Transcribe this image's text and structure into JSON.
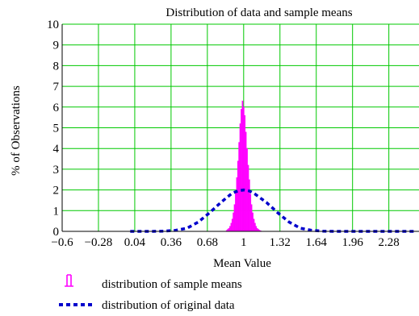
{
  "chart_data": {
    "type": "bar",
    "title": "Distribution of data and sample means",
    "xlabel": "Mean Value",
    "ylabel": "% of Observations",
    "xlim": [
      -0.6,
      2.56
    ],
    "ylim": [
      0,
      10
    ],
    "x_ticks": [
      -0.6,
      -0.28,
      0.04,
      0.36,
      0.68,
      1,
      1.32,
      1.64,
      1.96,
      2.28
    ],
    "x_tick_labels": [
      "−0.6",
      "−0.28",
      "0.04",
      "0.36",
      "0.68",
      "1",
      "1.32",
      "1.64",
      "1.96",
      "2.28"
    ],
    "y_ticks": [
      0,
      1,
      2,
      3,
      4,
      5,
      6,
      7,
      8,
      9,
      10
    ],
    "y_tick_labels": [
      "0",
      "1",
      "2",
      "3",
      "4",
      "5",
      "6",
      "7",
      "8",
      "9",
      "10"
    ],
    "grid": true,
    "grid_color": "#00c800",
    "legend_position": "bottom-left",
    "series": [
      {
        "name": "distribution of sample means",
        "type": "bar",
        "color": "#ff00ff",
        "bin_width": 0.01,
        "x": [
          0.85,
          0.86,
          0.87,
          0.88,
          0.89,
          0.9,
          0.91,
          0.92,
          0.93,
          0.94,
          0.95,
          0.96,
          0.97,
          0.98,
          0.99,
          1.0,
          1.01,
          1.02,
          1.03,
          1.04,
          1.05,
          1.06,
          1.07,
          1.08,
          1.09,
          1.1,
          1.11,
          1.12,
          1.13,
          1.14,
          1.15
        ],
        "values": [
          0.05,
          0.1,
          0.15,
          0.25,
          0.4,
          0.6,
          0.9,
          1.3,
          1.9,
          2.6,
          3.4,
          4.3,
          5.2,
          5.9,
          6.3,
          6.0,
          5.6,
          4.8,
          4.0,
          3.2,
          2.5,
          1.8,
          1.3,
          0.9,
          0.6,
          0.4,
          0.25,
          0.15,
          0.1,
          0.06,
          0.03
        ]
      },
      {
        "name": "distribution of original data",
        "type": "line",
        "style": "dotted",
        "color": "#0000cc",
        "x": [
          0.0,
          0.1,
          0.2,
          0.3,
          0.4,
          0.5,
          0.6,
          0.7,
          0.8,
          0.9,
          0.95,
          1.0,
          1.05,
          1.1,
          1.2,
          1.3,
          1.4,
          1.5,
          1.6,
          1.7,
          1.8,
          1.9,
          2.0,
          2.1,
          2.2,
          2.3,
          2.4,
          2.5
        ],
        "values": [
          0.0,
          0.0,
          0.0,
          0.01,
          0.05,
          0.15,
          0.45,
          0.9,
          1.4,
          1.85,
          1.95,
          2.0,
          1.95,
          1.8,
          1.4,
          0.9,
          0.45,
          0.15,
          0.05,
          0.01,
          0.0,
          0.0,
          0.0,
          0.0,
          0.0,
          0.0,
          0.0,
          0.0
        ]
      }
    ]
  }
}
